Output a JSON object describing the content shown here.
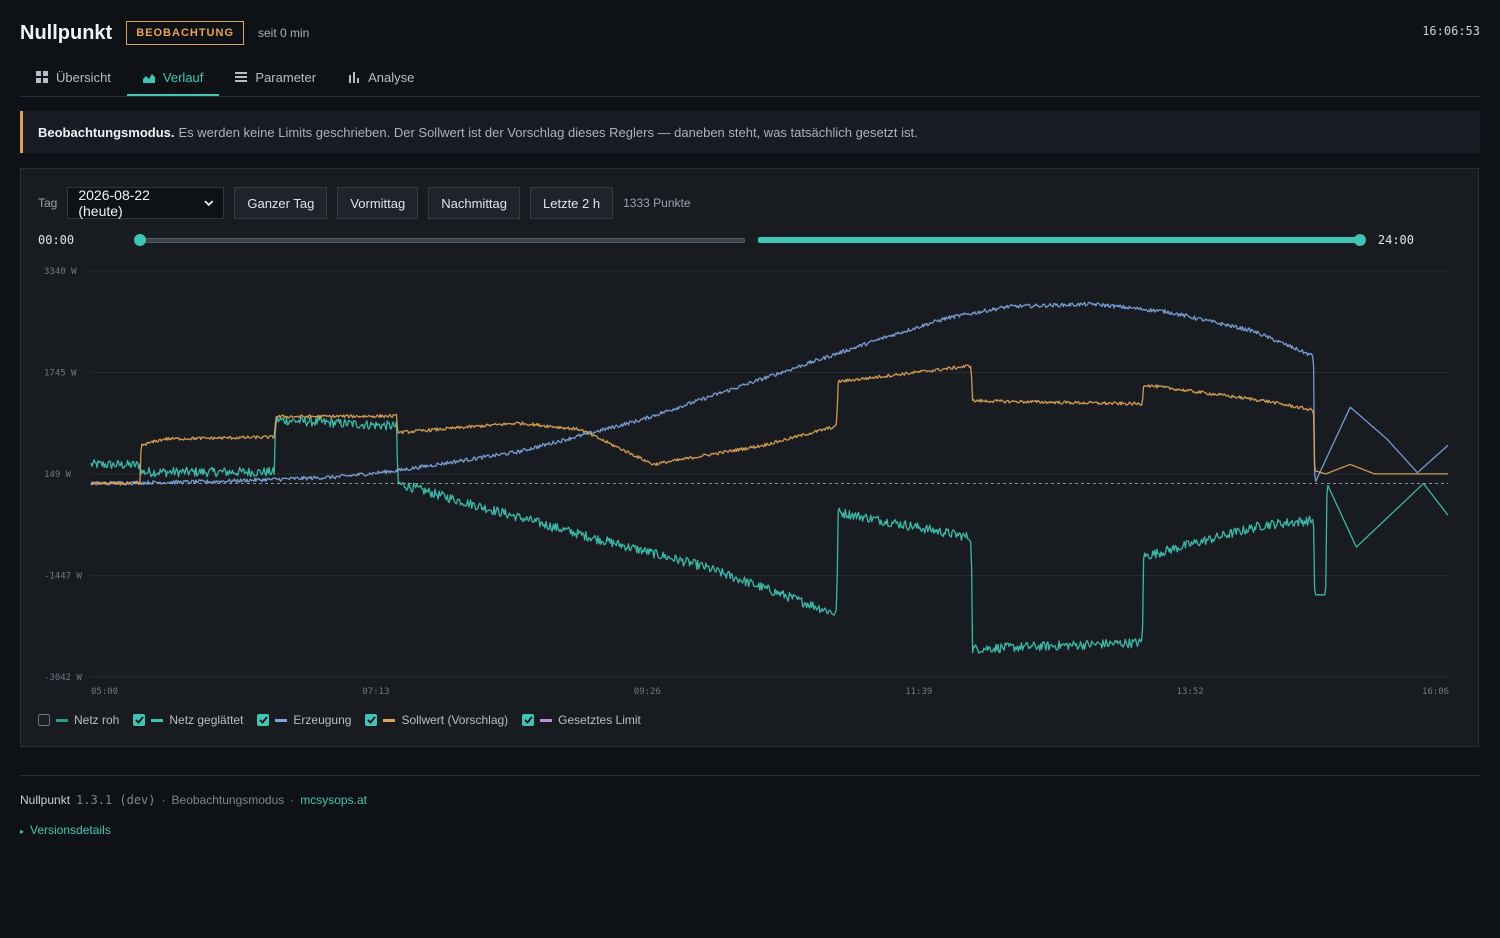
{
  "app": {
    "title": "Nullpunkt",
    "mode_badge": "BEOBACHTUNG",
    "since": "seit 0 min",
    "clock": "16:06:53"
  },
  "tabs": [
    {
      "label": "Übersicht",
      "icon": "grid-icon",
      "active": false
    },
    {
      "label": "Verlauf",
      "icon": "area-chart-icon",
      "active": true
    },
    {
      "label": "Parameter",
      "icon": "list-icon",
      "active": false
    },
    {
      "label": "Analyse",
      "icon": "bar-chart-icon",
      "active": false
    }
  ],
  "banner": {
    "title": "Beobachtungsmodus.",
    "text": "Es werden keine Limits geschrieben. Der Sollwert ist der Vorschlag dieses Reglers — daneben steht, was tatsächlich gesetzt ist."
  },
  "controls": {
    "day_label": "Tag",
    "date_value": "2026-08-22 (heute)",
    "buttons": [
      "Ganzer Tag",
      "Vormittag",
      "Nachmittag",
      "Letzte 2 h"
    ],
    "points": "1333 Punkte",
    "range_start": "00:00",
    "range_end": "24:00"
  },
  "legend": [
    {
      "label": "Netz roh",
      "checked": false,
      "color": "#2a9d8f"
    },
    {
      "label": "Netz geglättet",
      "checked": true,
      "color": "#3ec6b2"
    },
    {
      "label": "Erzeugung",
      "checked": true,
      "color": "#7fa5e0"
    },
    {
      "label": "Sollwert (Vorschlag)",
      "checked": true,
      "color": "#e0a552"
    },
    {
      "label": "Gesetztes Limit",
      "checked": true,
      "color": "#c28cdc"
    }
  ],
  "chart_data": {
    "type": "line",
    "ylim": [
      -3042,
      3340
    ],
    "y_ticks": [
      "3340 W",
      "1745 W",
      "149 W",
      "-1447 W",
      "-3042 W"
    ],
    "y_tick_values": [
      3340,
      1745,
      149,
      -1447,
      -3042
    ],
    "x_ticks": [
      "05:00",
      "07:13",
      "09:26",
      "11:39",
      "13:52",
      "16:06"
    ],
    "x_domain_hours": [
      5.0,
      16.1
    ],
    "zero_line": 0,
    "series": [
      {
        "name": "Netz geglättet",
        "color": "#3ec6b2",
        "noise": 150,
        "points": [
          [
            5.0,
            300
          ],
          [
            5.4,
            290
          ],
          [
            5.41,
            180
          ],
          [
            6.5,
            180
          ],
          [
            6.51,
            1000
          ],
          [
            7.5,
            900
          ],
          [
            7.51,
            0
          ],
          [
            9.0,
            -800
          ],
          [
            10.0,
            -1300
          ],
          [
            11.1,
            -2050
          ],
          [
            11.11,
            -450
          ],
          [
            12.2,
            -850
          ],
          [
            12.21,
            -2600
          ],
          [
            13.6,
            -2500
          ],
          [
            13.61,
            -1150
          ],
          [
            14.6,
            -650
          ],
          [
            15.0,
            -580
          ],
          [
            15.01,
            -1750
          ],
          [
            15.1,
            -1750
          ],
          [
            15.11,
            0
          ],
          [
            15.35,
            -1000
          ],
          [
            15.9,
            0
          ],
          [
            16.1,
            -500
          ]
        ]
      },
      {
        "name": "Erzeugung",
        "color": "#7fa5e0",
        "noise": 60,
        "points": [
          [
            5.0,
            0
          ],
          [
            6.0,
            30
          ],
          [
            7.0,
            100
          ],
          [
            7.5,
            200
          ],
          [
            8.5,
            500
          ],
          [
            9.5,
            1000
          ],
          [
            10.5,
            1650
          ],
          [
            11.5,
            2300
          ],
          [
            12.0,
            2600
          ],
          [
            12.5,
            2780
          ],
          [
            13.2,
            2820
          ],
          [
            13.8,
            2700
          ],
          [
            14.5,
            2400
          ],
          [
            15.0,
            2000
          ],
          [
            15.01,
            0
          ],
          [
            15.3,
            1200
          ],
          [
            15.6,
            700
          ],
          [
            15.85,
            170
          ],
          [
            16.1,
            600
          ]
        ]
      },
      {
        "name": "Sollwert (Vorschlag)",
        "color": "#e0a552",
        "noise": 50,
        "points": [
          [
            5.0,
            0
          ],
          [
            5.4,
            0
          ],
          [
            5.41,
            600
          ],
          [
            5.6,
            700
          ],
          [
            6.5,
            730
          ],
          [
            6.51,
            1050
          ],
          [
            7.5,
            1060
          ],
          [
            7.51,
            800
          ],
          [
            8.5,
            950
          ],
          [
            9.0,
            850
          ],
          [
            9.6,
            300
          ],
          [
            10.5,
            600
          ],
          [
            11.1,
            900
          ],
          [
            11.11,
            1600
          ],
          [
            12.2,
            1850
          ],
          [
            12.21,
            1300
          ],
          [
            13.6,
            1250
          ],
          [
            13.61,
            1550
          ],
          [
            14.6,
            1300
          ],
          [
            15.0,
            1150
          ],
          [
            15.01,
            200
          ],
          [
            15.1,
            150
          ],
          [
            15.3,
            300
          ],
          [
            15.5,
            150
          ],
          [
            16.1,
            150
          ]
        ]
      },
      {
        "name": "Gesetztes Limit",
        "color": "#c28cdc",
        "noise": 0,
        "points": []
      }
    ]
  },
  "footer": {
    "name": "Nullpunkt",
    "version": "1.3.1 (dev)",
    "mode": "Beobachtungsmodus",
    "link": "mcsysops.at",
    "details": "Versionsdetails"
  }
}
